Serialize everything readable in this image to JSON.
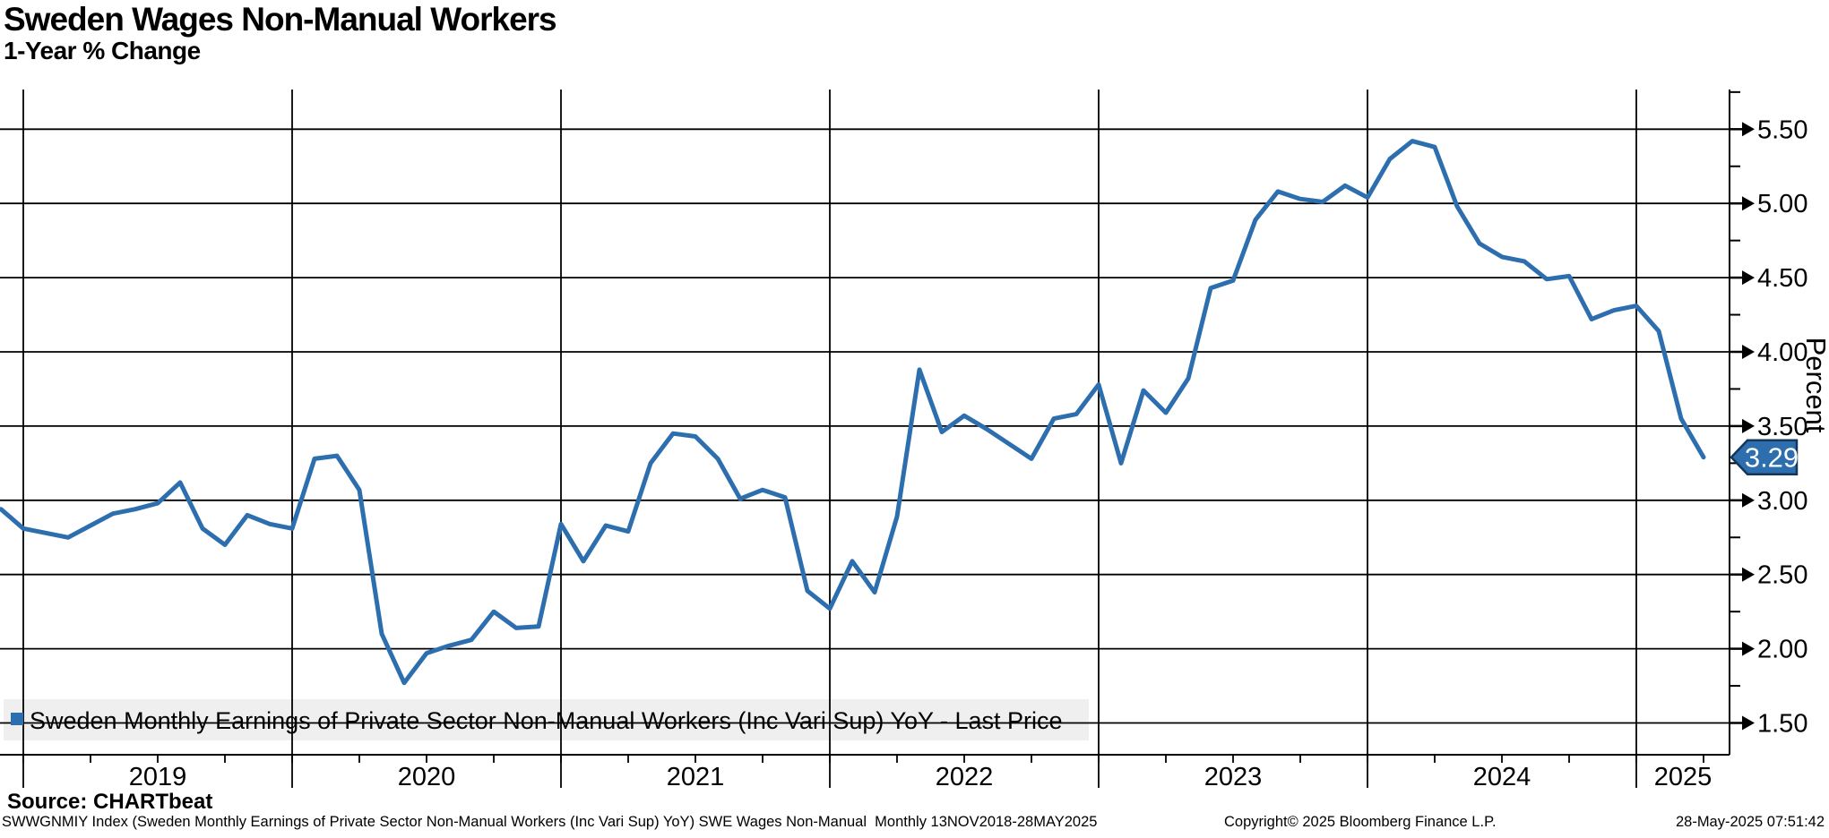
{
  "header": {
    "title": "Sweden Wages Non-Manual Workers",
    "subtitle": "1-Year % Change"
  },
  "legend": {
    "label": "Sweden Monthly Earnings of Private Sector Non-Manual Workers (Inc Vari Sup) YoY - Last Price",
    "marker": "blue-square"
  },
  "source": {
    "label": "Source: CHARTbeat"
  },
  "footer": {
    "description": "SWWGNMIY Index (Sweden Monthly Earnings of Private Sector Non-Manual Workers (Inc Vari Sup) YoY) SWE Wages Non-Manual  Monthly 13NOV2018-28MAY2025",
    "copyright": "Copyright© 2025 Bloomberg Finance L.P.",
    "timestamp": "28-May-2025 07:51:42"
  },
  "colors": {
    "line": "#2d6eaf",
    "callout_bg": "#2d6eaf",
    "callout_border": "#14365a",
    "callout_text": "#ffffff",
    "legend_bg": "#efefef",
    "grid": "#000000",
    "text": "#000000",
    "background": "#ffffff"
  },
  "chart_data": {
    "type": "line",
    "title": "Sweden Wages Non-Manual Workers",
    "subtitle": "1-Year % Change",
    "ylabel": "Percent",
    "xlabel": "",
    "grid": true,
    "legend_position": "bottom-left",
    "ylim": [
      1.29,
      5.79
    ],
    "y_ticks": [
      1.5,
      2.0,
      2.5,
      3.0,
      3.5,
      4.0,
      4.5,
      5.0,
      5.5
    ],
    "y_minor_step": 0.25,
    "x_year_labels": [
      "2019",
      "2020",
      "2021",
      "2022",
      "2023",
      "2024",
      "2025"
    ],
    "x_range_label": "13NOV2018-28MAY2025",
    "last_price": 3.29,
    "last_price_label": "3.29",
    "series": [
      {
        "name": "Sweden Monthly Earnings of Private Sector Non-Manual Workers (Inc Vari Sup) YoY - Last Price",
        "color": "#2d6eaf",
        "frequency": "monthly",
        "start_month": "2018-11",
        "end_month": "2025-03",
        "values": [
          2.94,
          2.81,
          2.78,
          2.75,
          2.83,
          2.91,
          2.94,
          2.98,
          3.12,
          2.81,
          2.7,
          2.9,
          2.84,
          2.81,
          3.28,
          3.3,
          3.07,
          2.1,
          1.77,
          1.97,
          2.02,
          2.06,
          2.25,
          2.14,
          2.15,
          2.84,
          2.59,
          2.83,
          2.79,
          3.25,
          3.45,
          3.43,
          3.28,
          3.01,
          3.07,
          3.02,
          2.39,
          2.27,
          2.59,
          2.38,
          2.89,
          3.88,
          3.46,
          3.57,
          3.48,
          3.38,
          3.28,
          3.55,
          3.58,
          3.78,
          3.25,
          3.74,
          3.59,
          3.82,
          4.43,
          4.48,
          4.89,
          5.08,
          5.03,
          5.01,
          5.12,
          5.04,
          5.3,
          5.42,
          5.38,
          4.98,
          4.73,
          4.64,
          4.61,
          4.49,
          4.51,
          4.22,
          4.28,
          4.31,
          4.14,
          3.55,
          3.29
        ]
      }
    ]
  }
}
